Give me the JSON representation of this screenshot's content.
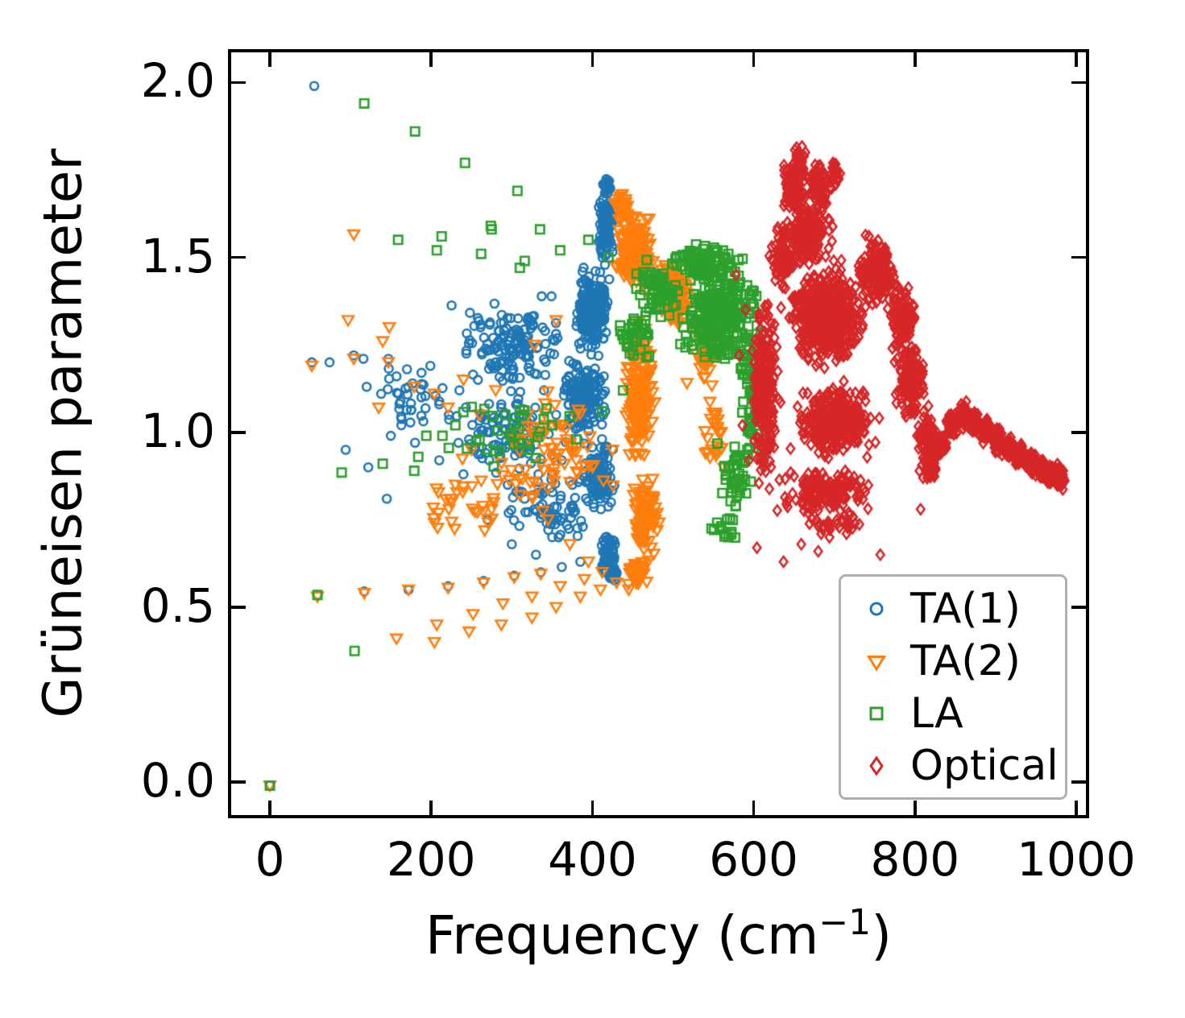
{
  "chart_data": {
    "type": "scatter",
    "title": "",
    "xlabel": "Frequency (cm⁻¹)",
    "xlabel_display": {
      "pre": "Frequency (cm",
      "sup": "−1",
      "post": ")"
    },
    "ylabel": "Grüneisen parameter",
    "xlim": [
      -48,
      1012
    ],
    "ylim": [
      -0.094,
      2.086
    ],
    "xticks": [
      0,
      200,
      400,
      600,
      800,
      1000
    ],
    "xtick_labels": [
      "0",
      "200",
      "400",
      "600",
      "800",
      "1000"
    ],
    "yticks": [
      0.0,
      0.5,
      1.0,
      1.5,
      2.0
    ],
    "ytick_labels": [
      "0.0",
      "0.5",
      "1.0",
      "1.5",
      "2.0"
    ],
    "grid": false,
    "tick_style": "inward, all four sides",
    "legend_position": "lower right",
    "legend_border_color": "#b0b0b0",
    "axis_color": "#000000",
    "background_color": "#ffffff",
    "seed": 7,
    "clusters_format": "[center_x, center_y, half_spread_x, half_spread_y, n_points] — dense unresolvable point clouds read from the figure",
    "series": [
      {
        "name": "TA(1)",
        "marker": "circle",
        "color": "#1f77b4",
        "points": [
          [
            0,
            -0.01
          ],
          [
            55,
            1.99
          ],
          [
            52,
            1.2
          ],
          [
            74,
            1.2
          ],
          [
            104,
            1.22
          ],
          [
            116,
            1.21
          ],
          [
            147,
            1.21
          ],
          [
            59,
            0.535
          ],
          [
            117,
            0.545
          ],
          [
            172,
            0.55
          ],
          [
            221,
            0.56
          ],
          [
            265,
            0.575
          ],
          [
            303,
            0.59
          ],
          [
            336,
            0.6
          ],
          [
            362,
            0.615
          ],
          [
            385,
            0.63
          ],
          [
            94,
            0.95
          ],
          [
            120,
            1.13
          ],
          [
            138,
            1.11
          ],
          [
            145,
            0.81
          ],
          [
            157,
            1.16
          ],
          [
            163,
            1.02
          ],
          [
            170,
            1.18
          ],
          [
            177,
            1.14
          ],
          [
            188,
            1.17
          ],
          [
            199,
            1.19
          ],
          [
            210,
            1.08
          ],
          [
            222,
            1.05
          ],
          [
            235,
            1.12
          ],
          [
            247,
            0.98
          ],
          [
            258,
            1.15
          ],
          [
            266,
            1.05
          ],
          [
            272,
            0.92
          ],
          [
            280,
            1.2
          ],
          [
            287,
            1.08
          ],
          [
            295,
            0.85
          ],
          [
            302,
            1.18
          ],
          [
            310,
            0.95
          ],
          [
            318,
            1.22
          ],
          [
            325,
            1.02
          ],
          [
            333,
            0.88
          ],
          [
            340,
            1.12
          ],
          [
            347,
            0.78
          ],
          [
            355,
            1.05
          ],
          [
            362,
            0.92
          ],
          [
            368,
            1.15
          ],
          [
            375,
            0.85
          ],
          [
            382,
            0.98
          ],
          [
            270,
            0.75
          ],
          [
            300,
            0.68
          ],
          [
            330,
            0.65
          ],
          [
            358,
            0.7
          ],
          [
            388,
            0.73
          ],
          [
            240,
            0.88
          ],
          [
            210,
            0.92
          ],
          [
            180,
            0.97
          ],
          [
            150,
            0.99
          ],
          [
            122,
            0.9
          ],
          [
            415,
            0.6
          ],
          [
            428,
            0.58
          ]
        ],
        "clusters": [
          [
            418,
            1.7,
            6,
            0.03,
            25
          ],
          [
            416,
            1.58,
            12,
            0.12,
            110
          ],
          [
            400,
            1.35,
            28,
            0.14,
            240
          ],
          [
            392,
            1.1,
            36,
            0.14,
            170
          ],
          [
            408,
            0.88,
            26,
            0.12,
            110
          ],
          [
            420,
            0.66,
            14,
            0.07,
            60
          ],
          [
            425,
            0.595,
            8,
            0.025,
            30
          ],
          [
            305,
            1.25,
            85,
            0.16,
            140
          ],
          [
            295,
            1.0,
            85,
            0.15,
            100
          ],
          [
            350,
            0.78,
            70,
            0.14,
            70
          ],
          [
            175,
            1.1,
            65,
            0.1,
            30
          ]
        ]
      },
      {
        "name": "TA(2)",
        "marker": "triangle-down",
        "color": "#ff7f0e",
        "points": [
          [
            0,
            -0.01
          ],
          [
            104,
            1.565
          ],
          [
            97,
            1.32
          ],
          [
            148,
            1.3
          ],
          [
            140,
            1.26
          ],
          [
            52,
            1.19
          ],
          [
            104,
            1.21
          ],
          [
            147,
            1.2
          ],
          [
            59,
            0.53
          ],
          [
            117,
            0.54
          ],
          [
            172,
            0.55
          ],
          [
            221,
            0.555
          ],
          [
            265,
            0.57
          ],
          [
            303,
            0.585
          ],
          [
            336,
            0.595
          ],
          [
            157,
            0.41
          ],
          [
            204,
            0.4
          ],
          [
            207,
            0.45
          ],
          [
            247,
            0.43
          ],
          [
            252,
            0.48
          ],
          [
            287,
            0.45
          ],
          [
            289,
            0.51
          ],
          [
            325,
            0.47
          ],
          [
            325,
            0.53
          ],
          [
            355,
            0.5
          ],
          [
            360,
            0.56
          ],
          [
            385,
            0.53
          ],
          [
            390,
            0.58
          ],
          [
            410,
            0.55
          ],
          [
            430,
            0.57
          ],
          [
            445,
            0.55
          ],
          [
            179,
            1.13
          ],
          [
            204,
            1.11
          ],
          [
            135,
            1.07
          ],
          [
            221,
            1.07
          ],
          [
            240,
            1.15
          ],
          [
            260,
            1.05
          ],
          [
            280,
            1.12
          ],
          [
            300,
            0.98
          ],
          [
            320,
            1.05
          ],
          [
            340,
            0.95
          ],
          [
            360,
            1.02
          ],
          [
            380,
            0.92
          ],
          [
            250,
            0.95
          ],
          [
            230,
            0.85
          ],
          [
            275,
            0.78
          ],
          [
            310,
            0.82
          ],
          [
            345,
            0.75
          ],
          [
            372,
            0.68
          ],
          [
            395,
            0.63
          ],
          [
            412,
            0.6
          ],
          [
            425,
            0.95
          ],
          [
            328,
            1.25
          ],
          [
            355,
            1.32
          ]
        ],
        "clusters": [
          [
            436,
            1.64,
            10,
            0.05,
            45
          ],
          [
            452,
            1.52,
            26,
            0.13,
            210
          ],
          [
            500,
            1.4,
            26,
            0.11,
            130
          ],
          [
            458,
            1.1,
            22,
            0.26,
            170
          ],
          [
            465,
            0.75,
            22,
            0.14,
            100
          ],
          [
            455,
            0.6,
            18,
            0.05,
            40
          ],
          [
            540,
            1.25,
            28,
            0.16,
            60
          ],
          [
            552,
            1.0,
            20,
            0.18,
            25
          ],
          [
            350,
            0.95,
            85,
            0.22,
            70
          ],
          [
            240,
            0.8,
            75,
            0.15,
            30
          ]
        ]
      },
      {
        "name": "LA",
        "marker": "square",
        "color": "#2ca02c",
        "points": [
          [
            0,
            -0.01
          ],
          [
            117,
            1.94
          ],
          [
            180,
            1.86
          ],
          [
            242,
            1.77
          ],
          [
            307,
            1.69
          ],
          [
            274,
            1.59
          ],
          [
            335,
            1.58
          ],
          [
            159,
            1.55
          ],
          [
            213,
            1.56
          ],
          [
            207,
            1.52
          ],
          [
            262,
            1.51
          ],
          [
            275,
            1.58
          ],
          [
            316,
            1.49
          ],
          [
            310,
            1.47
          ],
          [
            360,
            1.52
          ],
          [
            395,
            1.55
          ],
          [
            420,
            1.5
          ],
          [
            89,
            0.885
          ],
          [
            140,
            0.91
          ],
          [
            184,
            0.93
          ],
          [
            179,
            0.89
          ],
          [
            194,
            0.99
          ],
          [
            214,
            0.99
          ],
          [
            230,
            1.02
          ],
          [
            260,
            0.98
          ],
          [
            292,
            1.05
          ],
          [
            320,
            0.95
          ],
          [
            350,
            1.02
          ],
          [
            380,
            0.98
          ],
          [
            412,
            1.06
          ],
          [
            438,
            1.12
          ],
          [
            105,
            0.375
          ],
          [
            59,
            0.535
          ]
        ],
        "clusters": [
          [
            560,
            1.33,
            58,
            0.16,
            260
          ],
          [
            540,
            1.48,
            55,
            0.07,
            90
          ],
          [
            480,
            1.4,
            35,
            0.12,
            70
          ],
          [
            602,
            1.12,
            23,
            0.24,
            90
          ],
          [
            578,
            0.88,
            28,
            0.13,
            45
          ],
          [
            565,
            0.72,
            25,
            0.07,
            14
          ],
          [
            300,
            1.02,
            115,
            0.18,
            28
          ],
          [
            452,
            1.28,
            30,
            0.1,
            40
          ]
        ]
      },
      {
        "name": "Optical",
        "marker": "thin-diamond",
        "color": "#d62728",
        "points": [
          [
            604,
            0.67
          ],
          [
            637,
            0.63
          ],
          [
            659,
            0.68
          ],
          [
            680,
            0.66
          ],
          [
            694,
            0.7
          ],
          [
            719,
            0.73
          ],
          [
            757,
            0.65
          ],
          [
            807,
            0.78
          ],
          [
            810,
            0.87
          ],
          [
            578,
            1.45
          ],
          [
            582,
            1.22
          ],
          [
            586,
            1.02
          ],
          [
            590,
            1.35
          ],
          [
            594,
            0.92
          ]
        ],
        "clusters": [
          [
            658,
            1.78,
            10,
            0.045,
            40
          ],
          [
            700,
            1.74,
            9,
            0.05,
            30
          ],
          [
            650,
            1.7,
            20,
            0.09,
            120
          ],
          [
            682,
            1.7,
            16,
            0.08,
            100
          ],
          [
            665,
            1.56,
            38,
            0.1,
            190
          ],
          [
            635,
            1.5,
            18,
            0.1,
            80
          ],
          [
            690,
            1.33,
            55,
            0.17,
            550
          ],
          [
            614,
            1.12,
            22,
            0.32,
            260
          ],
          [
            700,
            1.03,
            62,
            0.13,
            300
          ],
          [
            752,
            1.46,
            28,
            0.12,
            190
          ],
          [
            785,
            1.32,
            20,
            0.12,
            120
          ],
          [
            795,
            1.15,
            22,
            0.13,
            140
          ],
          [
            815,
            0.98,
            18,
            0.11,
            80
          ],
          [
            690,
            0.83,
            75,
            0.08,
            170
          ],
          [
            700,
            0.74,
            60,
            0.045,
            35
          ],
          [
            820,
            0.9,
            9,
            0.042,
            55
          ],
          [
            832,
            0.96,
            9,
            0.042,
            55
          ],
          [
            846,
            1.02,
            9,
            0.042,
            55
          ],
          [
            860,
            1.05,
            9,
            0.042,
            55
          ],
          [
            874,
            1.03,
            9,
            0.042,
            55
          ],
          [
            888,
            1.005,
            9,
            0.042,
            55
          ],
          [
            902,
            0.98,
            9,
            0.042,
            55
          ],
          [
            916,
            0.955,
            9,
            0.042,
            55
          ],
          [
            930,
            0.935,
            9,
            0.042,
            55
          ],
          [
            944,
            0.915,
            9,
            0.042,
            55
          ],
          [
            958,
            0.895,
            9,
            0.042,
            55
          ],
          [
            970,
            0.88,
            9,
            0.042,
            55
          ],
          [
            980,
            0.868,
            9,
            0.042,
            55
          ]
        ]
      }
    ]
  }
}
